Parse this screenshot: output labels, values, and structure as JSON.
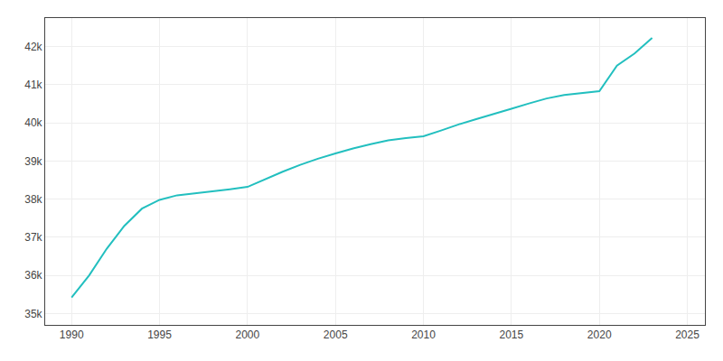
{
  "chart_data": {
    "type": "line",
    "x": [
      1990,
      1991,
      1992,
      1993,
      1994,
      1995,
      1996,
      1997,
      1998,
      1999,
      2000,
      2001,
      2002,
      2003,
      2004,
      2005,
      2006,
      2007,
      2008,
      2009,
      2010,
      2011,
      2012,
      2013,
      2014,
      2015,
      2016,
      2017,
      2018,
      2019,
      2020,
      2021,
      2022,
      2023
    ],
    "values": [
      35418,
      36000,
      36700,
      37300,
      37750,
      37980,
      38100,
      38150,
      38200,
      38260,
      38320,
      38520,
      38720,
      38900,
      39060,
      39200,
      39330,
      39440,
      39540,
      39600,
      39650,
      39800,
      39960,
      40100,
      40230,
      40370,
      40510,
      40640,
      40730,
      40780,
      40830,
      41500,
      41820,
      42230
    ],
    "color": "#22bfbf",
    "xlim": [
      1988.5,
      2026
    ],
    "ylim": [
      34700,
      42750
    ],
    "xticks": [
      1990,
      1995,
      2000,
      2005,
      2010,
      2015,
      2020,
      2025
    ],
    "yticks": [
      {
        "value": 35000,
        "label": "35k"
      },
      {
        "value": 36000,
        "label": "36k"
      },
      {
        "value": 37000,
        "label": "37k"
      },
      {
        "value": 38000,
        "label": "38k"
      },
      {
        "value": 39000,
        "label": "39k"
      },
      {
        "value": 40000,
        "label": "40k"
      },
      {
        "value": 41000,
        "label": "41k"
      },
      {
        "value": 42000,
        "label": "42k"
      }
    ],
    "grid": true
  }
}
